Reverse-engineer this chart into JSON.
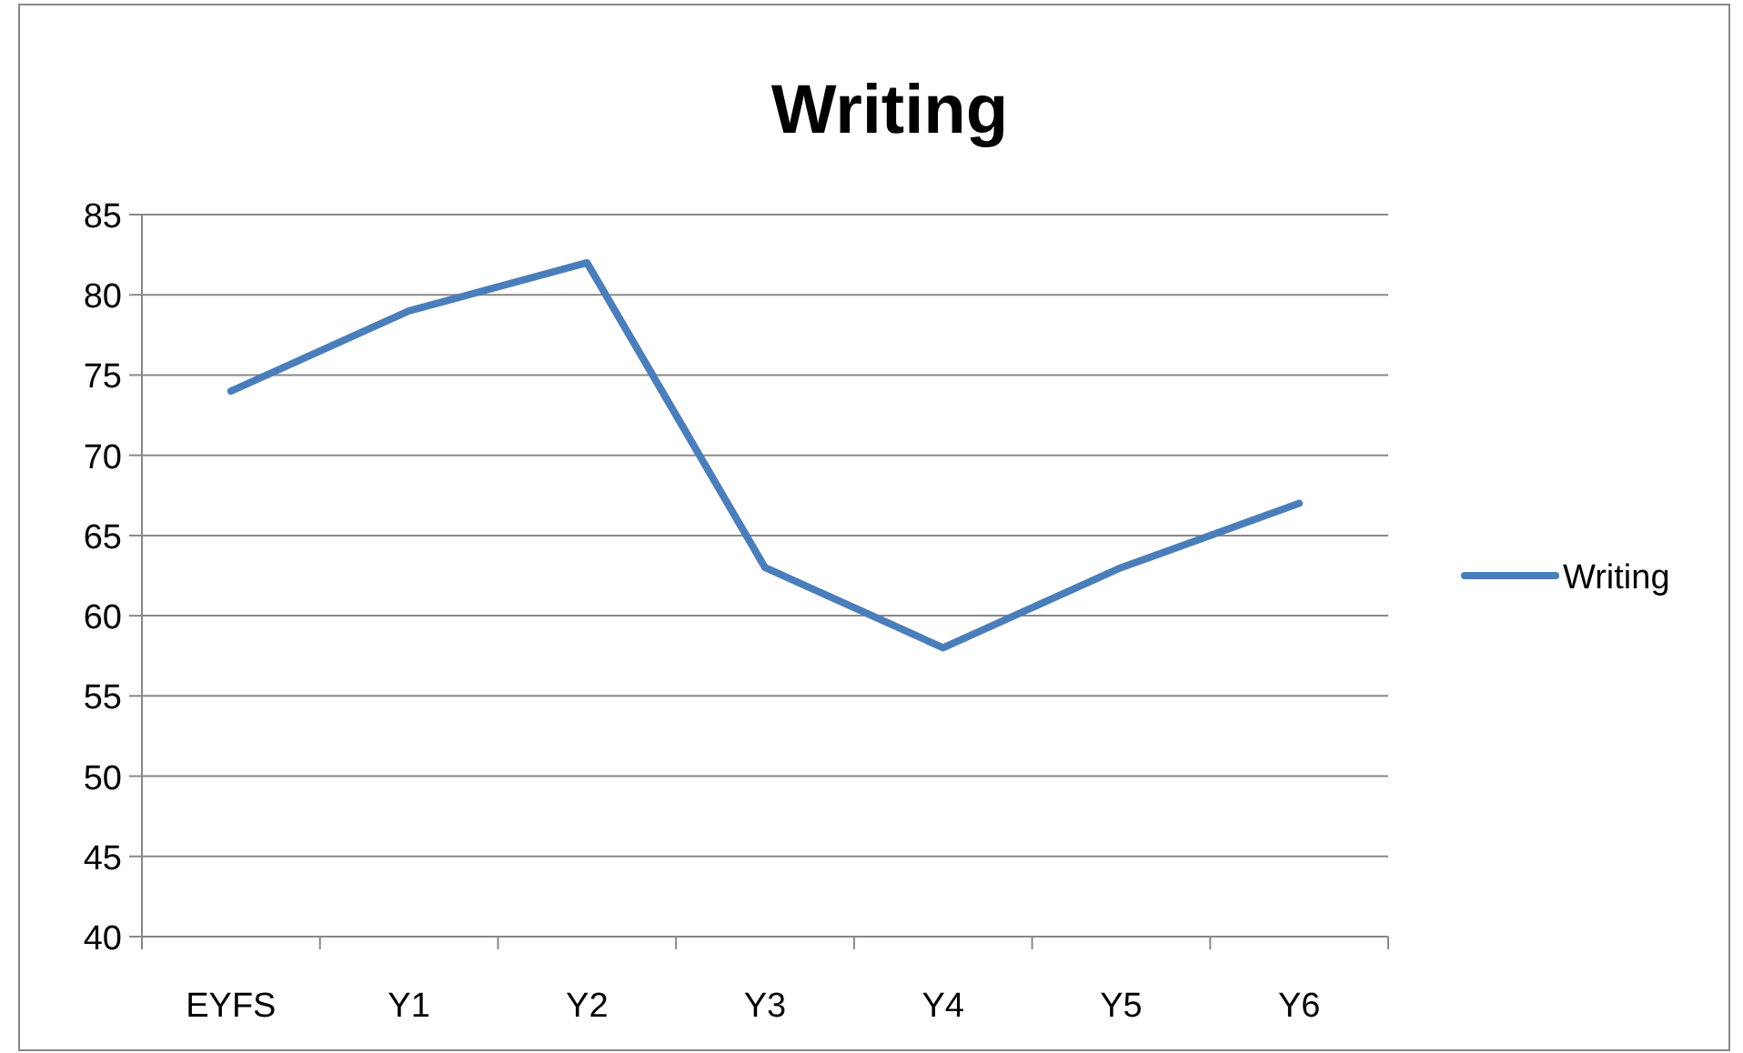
{
  "chart_data": {
    "type": "line",
    "title": "Writing",
    "categories": [
      "EYFS",
      "Y1",
      "Y2",
      "Y3",
      "Y4",
      "Y5",
      "Y6"
    ],
    "series": [
      {
        "name": "Writing",
        "color": "#4a7ebb",
        "values": [
          74,
          79,
          82,
          63,
          58,
          63,
          67
        ]
      }
    ],
    "ylim": [
      40,
      85
    ],
    "yticks": [
      40,
      45,
      50,
      55,
      60,
      65,
      70,
      75,
      80,
      85
    ],
    "grid": "y",
    "legend": "right",
    "marker": "none",
    "line_style": "solid"
  }
}
